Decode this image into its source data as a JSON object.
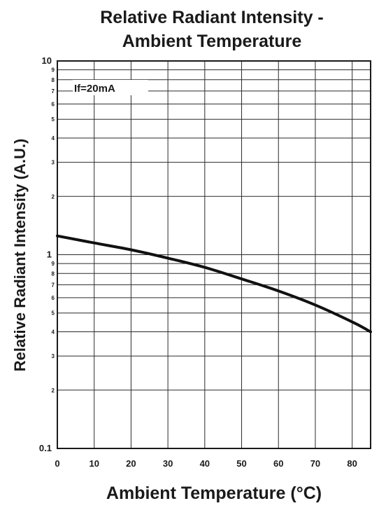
{
  "chart_data": {
    "type": "line",
    "title_line1": "Relative Radiant Intensity -",
    "title_line2": "Ambient Temperature",
    "xlabel": "Ambient Temperature (°C)",
    "ylabel": "Relative Radiant Intensity (A.U.)",
    "xscale": "linear",
    "yscale": "log",
    "xlim": [
      0,
      85
    ],
    "ylim": [
      0.1,
      10
    ],
    "grid": true,
    "x_ticks": [
      0,
      10,
      20,
      30,
      40,
      50,
      60,
      70,
      80
    ],
    "x_gridlines": [
      0,
      10,
      20,
      30,
      40,
      50,
      60,
      70,
      80
    ],
    "y_major_ticks": [
      {
        "value": 10,
        "label": "10"
      },
      {
        "value": 1,
        "label": "1"
      },
      {
        "value": 0.1,
        "label": "0.1"
      }
    ],
    "y_minor_ticks": [
      {
        "value": 9,
        "label": "9"
      },
      {
        "value": 8,
        "label": "8"
      },
      {
        "value": 7,
        "label": "7"
      },
      {
        "value": 6,
        "label": "6"
      },
      {
        "value": 5,
        "label": "5"
      },
      {
        "value": 4,
        "label": "4"
      },
      {
        "value": 3,
        "label": "3"
      },
      {
        "value": 2,
        "label": "2"
      },
      {
        "value": 0.9,
        "label": "9"
      },
      {
        "value": 0.8,
        "label": "8"
      },
      {
        "value": 0.7,
        "label": "7"
      },
      {
        "value": 0.6,
        "label": "6"
      },
      {
        "value": 0.5,
        "label": "5"
      },
      {
        "value": 0.4,
        "label": "4"
      },
      {
        "value": 0.3,
        "label": "3"
      },
      {
        "value": 0.2,
        "label": "2"
      }
    ],
    "annotation": "If=20mA",
    "series": [
      {
        "x": [
          0,
          10,
          20,
          30,
          40,
          50,
          60,
          70,
          80,
          85
        ],
        "y": [
          1.25,
          1.15,
          1.06,
          0.96,
          0.86,
          0.75,
          0.65,
          0.55,
          0.45,
          0.4
        ]
      }
    ]
  }
}
